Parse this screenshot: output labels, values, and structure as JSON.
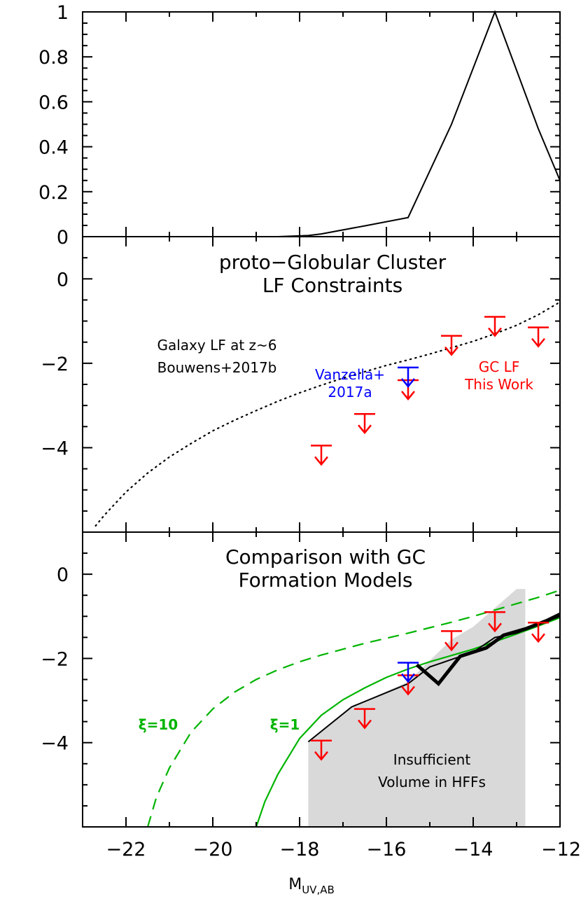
{
  "chart_data": [
    {
      "type": "line",
      "panel": "top",
      "ylim": [
        0,
        1
      ],
      "xlim": [
        -23,
        -12
      ],
      "yticks": [
        "0",
        "0.2",
        "0.4",
        "0.6",
        "0.8",
        "1"
      ],
      "ylabel": "",
      "series": [
        {
          "x": [
            -18.5,
            -17.8,
            -17.5,
            -16.5,
            -15.5,
            -14.5,
            -13.5,
            -12.5,
            -12
          ],
          "y": [
            0.0,
            0.005,
            0.012,
            0.048,
            0.085,
            0.5,
            1.0,
            0.48,
            0.25
          ]
        }
      ]
    },
    {
      "type": "scatter",
      "panel": "middle",
      "title": "proto−Globular Cluster",
      "title2": "LF Constraints",
      "ylim": [
        -6,
        1
      ],
      "xlim": [
        -23,
        -12
      ],
      "yticks": [
        "0",
        "−2",
        "−4"
      ],
      "annotations": {
        "galaxy_lf": [
          "Galaxy LF at z~6",
          "Bouwens+2017b"
        ],
        "vanzella": [
          "Vanzella+",
          "2017a"
        ],
        "gc_lf": [
          "GC LF",
          "This Work"
        ]
      },
      "galaxy_lf_curve": {
        "x": [
          -22.7,
          -22.5,
          -22,
          -21.5,
          -21,
          -20.5,
          -20,
          -19.5,
          -19,
          -18.5,
          -18,
          -17.5,
          -17,
          -16.5,
          -16,
          -15.5,
          -15,
          -14.5,
          -14,
          -13.5,
          -13,
          -12.5,
          -12
        ],
        "y": [
          -5.85,
          -5.6,
          -5.05,
          -4.6,
          -4.22,
          -3.9,
          -3.6,
          -3.35,
          -3.12,
          -2.9,
          -2.7,
          -2.52,
          -2.35,
          -2.2,
          -2.05,
          -1.92,
          -1.78,
          -1.63,
          -1.48,
          -1.3,
          -1.1,
          -0.85,
          -0.55
        ]
      },
      "gc_lf_upper_limits": {
        "x": [
          -17.5,
          -16.5,
          -15.5,
          -14.5,
          -13.5,
          -12.5
        ],
        "y": [
          -3.95,
          -3.2,
          -2.4,
          -1.35,
          -0.9,
          -1.15
        ]
      },
      "vanzella_upper_limit": {
        "x": -15.5,
        "y": -2.1
      }
    },
    {
      "type": "line",
      "panel": "bottom",
      "title": "Comparison with GC",
      "title2": "Formation Models",
      "ylim": [
        -6,
        1
      ],
      "xlim": [
        -23,
        -12
      ],
      "yticks": [
        "0",
        "−2",
        "−4"
      ],
      "xticks": [
        "−22",
        "−20",
        "−18",
        "−16",
        "−14",
        "−12"
      ],
      "xlabel_main": "M",
      "xlabel_sub": "UV,AB",
      "labels": {
        "xi10": "ξ=10",
        "xi1": "ξ=1",
        "insufficient": [
          "Insufficient",
          "Volume in HFFs"
        ]
      },
      "xi10_curve": {
        "x": [
          -21.5,
          -21.3,
          -21,
          -20.5,
          -20,
          -19.5,
          -19,
          -18.5,
          -18,
          -17.5,
          -17,
          -16.5,
          -16,
          -15.5,
          -15,
          -14.5,
          -14,
          -13.5,
          -13,
          -12.5,
          -12
        ],
        "y": [
          -6,
          -5.3,
          -4.6,
          -3.75,
          -3.2,
          -2.8,
          -2.5,
          -2.27,
          -2.08,
          -1.92,
          -1.78,
          -1.64,
          -1.52,
          -1.4,
          -1.27,
          -1.14,
          -1.0,
          -0.85,
          -0.7,
          -0.55,
          -0.38
        ]
      },
      "xi1_curve": {
        "x": [
          -19,
          -18.8,
          -18.5,
          -18,
          -17.5,
          -17,
          -16.5,
          -16,
          -15.5,
          -15,
          -14.5,
          -14,
          -13.5,
          -13,
          -12.5,
          -12
        ],
        "y": [
          -6,
          -5.4,
          -4.75,
          -3.9,
          -3.35,
          -2.98,
          -2.7,
          -2.45,
          -2.25,
          -2.08,
          -1.93,
          -1.78,
          -1.6,
          -1.42,
          -1.23,
          -1.03
        ]
      },
      "model_thin": {
        "x": [
          -17.8,
          -16.8,
          -15.5,
          -15.0,
          -14.0,
          -13.5,
          -13.0,
          -12.5,
          -12.0
        ],
        "y": [
          -3.98,
          -3.15,
          -2.6,
          -2.2,
          -1.85,
          -1.5,
          -1.4,
          -1.2,
          -1.0
        ]
      },
      "model_thick": {
        "x": [
          -15.3,
          -14.8,
          -14.3,
          -13.7,
          -13.3,
          -12.8,
          -12.3,
          -12.0
        ],
        "y": [
          -2.15,
          -2.6,
          -1.95,
          -1.75,
          -1.45,
          -1.3,
          -1.1,
          -0.95
        ]
      },
      "shaded_region": {
        "x": [
          -17.8,
          -17.8,
          -16.8,
          -15.5,
          -15.0,
          -14.5,
          -14.0,
          -13.5,
          -13.0,
          -12.8,
          -12.8
        ],
        "y": [
          -6,
          -3.98,
          -3.15,
          -2.55,
          -2.05,
          -1.55,
          -1.25,
          -0.8,
          -0.35,
          -0.35,
          -6
        ]
      },
      "gc_lf_upper_limits": {
        "x": [
          -17.5,
          -16.5,
          -15.5,
          -14.5,
          -13.5,
          -12.5
        ],
        "y": [
          -3.95,
          -3.2,
          -2.4,
          -1.35,
          -0.9,
          -1.15
        ]
      },
      "vanzella_upper_limit": {
        "x": -15.5,
        "y": -2.1
      }
    }
  ],
  "colors": {
    "limit": "#ff0000",
    "vanzella": "#0000ff",
    "model": "#00b400",
    "shade": "#d9d9d9"
  }
}
